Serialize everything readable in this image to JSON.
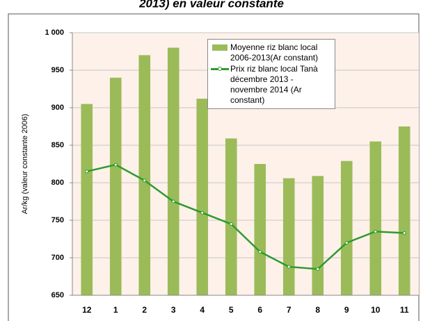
{
  "chart_data": {
    "type": "bar_line",
    "title": "2013) en valeur constante",
    "y_label": "Ar/kg (valeur constante 2006)",
    "categories": [
      "12",
      "1",
      "2",
      "3",
      "4",
      "5",
      "6",
      "7",
      "8",
      "9",
      "10",
      "11"
    ],
    "series": [
      {
        "name": "Moyenne riz blanc local 2006-2013(Ar constant)",
        "type": "bar",
        "color": "#9bbb59",
        "values": [
          905,
          940,
          970,
          980,
          912,
          859,
          825,
          806,
          809,
          829,
          855,
          875
        ]
      },
      {
        "name": "Prix riz blanc local Tanà décembre 2013 - novembre 2014 (Ar constant)",
        "type": "line",
        "color": "#2e9a2e",
        "values": [
          815,
          824,
          803,
          775,
          760,
          745,
          708,
          688,
          685,
          720,
          735,
          733
        ]
      }
    ],
    "ylim": [
      650,
      1000
    ],
    "yticks": [
      650,
      700,
      750,
      800,
      850,
      900,
      950,
      {
        "value": 1000,
        "label": "1 000"
      }
    ],
    "grid": true
  }
}
